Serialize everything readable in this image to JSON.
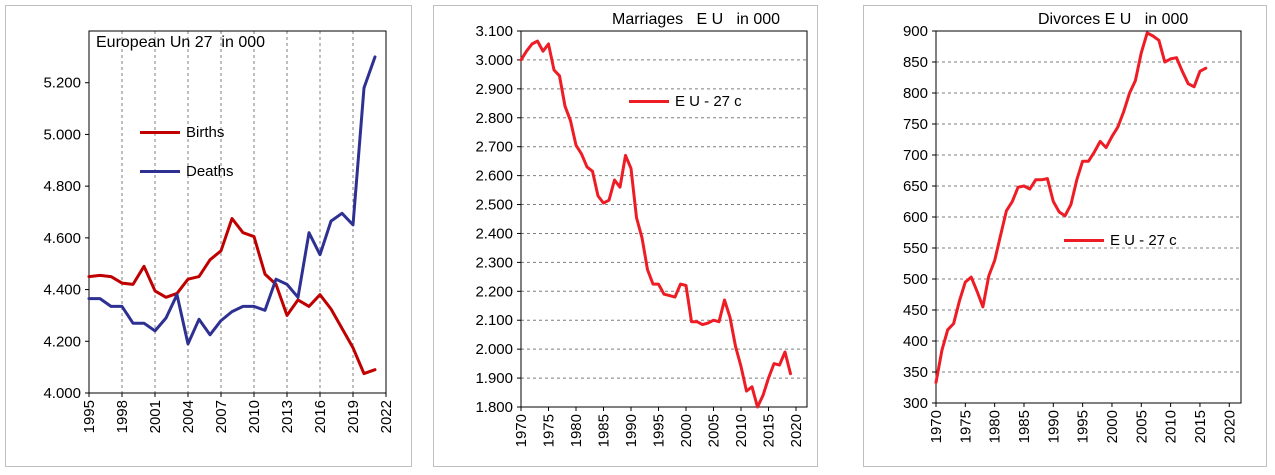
{
  "chart_data": [
    {
      "type": "line",
      "title": "European Un 27  in 000",
      "x": [
        1995,
        1996,
        1997,
        1998,
        1999,
        2000,
        2001,
        2002,
        2003,
        2004,
        2005,
        2006,
        2007,
        2008,
        2009,
        2010,
        2011,
        2012,
        2013,
        2014,
        2015,
        2016,
        2017,
        2018,
        2019,
        2020,
        2021
      ],
      "series": [
        {
          "name": "Births",
          "color": "#c00000",
          "values": [
            4450,
            4455,
            4450,
            4425,
            4420,
            4490,
            4395,
            4370,
            4385,
            4440,
            4450,
            4515,
            4550,
            4675,
            4620,
            4605,
            4460,
            4420,
            4300,
            4360,
            4335,
            4380,
            4325,
            4250,
            4175,
            4075,
            4090
          ]
        },
        {
          "name": "Deaths",
          "color": "#2e3192",
          "values": [
            4365,
            4365,
            4335,
            4335,
            4270,
            4270,
            4240,
            4290,
            4380,
            4190,
            4285,
            4225,
            4280,
            4315,
            4335,
            4335,
            4320,
            4440,
            4420,
            4370,
            4620,
            4535,
            4665,
            4695,
            4650,
            5180,
            5300
          ]
        }
      ],
      "xticks": [
        "1995",
        "1998",
        "2001",
        "2004",
        "2007",
        "2010",
        "2013",
        "2016",
        "2019",
        "2022"
      ],
      "yticks": [
        "4.000",
        "4.200",
        "4.400",
        "4.600",
        "4.800",
        "5.000",
        "5.200"
      ],
      "xlim": [
        1995,
        2022
      ],
      "ylim": [
        4000,
        5400
      ],
      "grid": "vertical dashed",
      "legend": "center"
    },
    {
      "type": "line",
      "title": "Marriages   E U   in 000",
      "x": [
        1970,
        1971,
        1972,
        1973,
        1974,
        1975,
        1976,
        1977,
        1978,
        1979,
        1980,
        1981,
        1982,
        1983,
        1984,
        1985,
        1986,
        1987,
        1988,
        1989,
        1990,
        1991,
        1992,
        1993,
        1994,
        1995,
        1996,
        1997,
        1998,
        1999,
        2000,
        2001,
        2002,
        2003,
        2004,
        2005,
        2006,
        2007,
        2008,
        2009,
        2010,
        2011,
        2012,
        2013,
        2014,
        2015,
        2016,
        2017,
        2018,
        2019
      ],
      "series": [
        {
          "name": "E U - 27 c",
          "color": "#ee1c25",
          "values": [
            3000,
            3030,
            3055,
            3065,
            3030,
            3055,
            2965,
            2945,
            2840,
            2790,
            2705,
            2675,
            2630,
            2615,
            2530,
            2505,
            2515,
            2585,
            2560,
            2670,
            2625,
            2455,
            2385,
            2275,
            2225,
            2225,
            2190,
            2185,
            2180,
            2225,
            2220,
            2095,
            2095,
            2085,
            2090,
            2100,
            2095,
            2170,
            2110,
            2010,
            1940,
            1855,
            1870,
            1800,
            1840,
            1900,
            1950,
            1945,
            1990,
            1915
          ]
        }
      ],
      "xticks": [
        "1970",
        "1975",
        "1980",
        "1985",
        "1990",
        "1995",
        "2000",
        "2005",
        "2010",
        "2015",
        "2020"
      ],
      "yticks": [
        "1.800",
        "1.900",
        "2.000",
        "2.100",
        "2.200",
        "2.300",
        "2.400",
        "2.500",
        "2.600",
        "2.700",
        "2.800",
        "2.900",
        "3.000",
        "3.100"
      ],
      "xlim": [
        1970,
        2022
      ],
      "ylim": [
        1800,
        3100
      ],
      "grid": "horizontal dashed",
      "legend": "top-center"
    },
    {
      "type": "line",
      "title": "Divorces E U   in 000",
      "x": [
        1970,
        1971,
        1972,
        1973,
        1974,
        1975,
        1976,
        1977,
        1978,
        1979,
        1980,
        1981,
        1982,
        1983,
        1984,
        1985,
        1986,
        1987,
        1988,
        1989,
        1990,
        1991,
        1992,
        1993,
        1994,
        1995,
        1996,
        1997,
        1998,
        1999,
        2000,
        2001,
        2002,
        2003,
        2004,
        2005,
        2006,
        2007,
        2008,
        2009,
        2010,
        2011,
        2012,
        2013,
        2014,
        2015,
        2016
      ],
      "series": [
        {
          "name": "E U - 27 c",
          "color": "#ee1c25",
          "values": [
            333,
            385,
            418,
            428,
            465,
            495,
            503,
            480,
            455,
            505,
            530,
            570,
            610,
            625,
            648,
            650,
            645,
            660,
            660,
            662,
            625,
            608,
            602,
            620,
            660,
            690,
            690,
            705,
            722,
            712,
            730,
            745,
            770,
            800,
            820,
            865,
            897,
            892,
            885,
            850,
            855,
            857,
            835,
            815,
            810,
            835,
            840
          ]
        }
      ],
      "xticks": [
        "1970",
        "1975",
        "1980",
        "1985",
        "1990",
        "1995",
        "2000",
        "2005",
        "2010",
        "2015",
        "2020"
      ],
      "yticks": [
        "300",
        "350",
        "400",
        "450",
        "500",
        "550",
        "600",
        "650",
        "700",
        "750",
        "800",
        "850",
        "900"
      ],
      "xlim": [
        1970,
        2022
      ],
      "ylim": [
        300,
        900
      ],
      "grid": "horizontal dashed",
      "legend": "center"
    }
  ]
}
